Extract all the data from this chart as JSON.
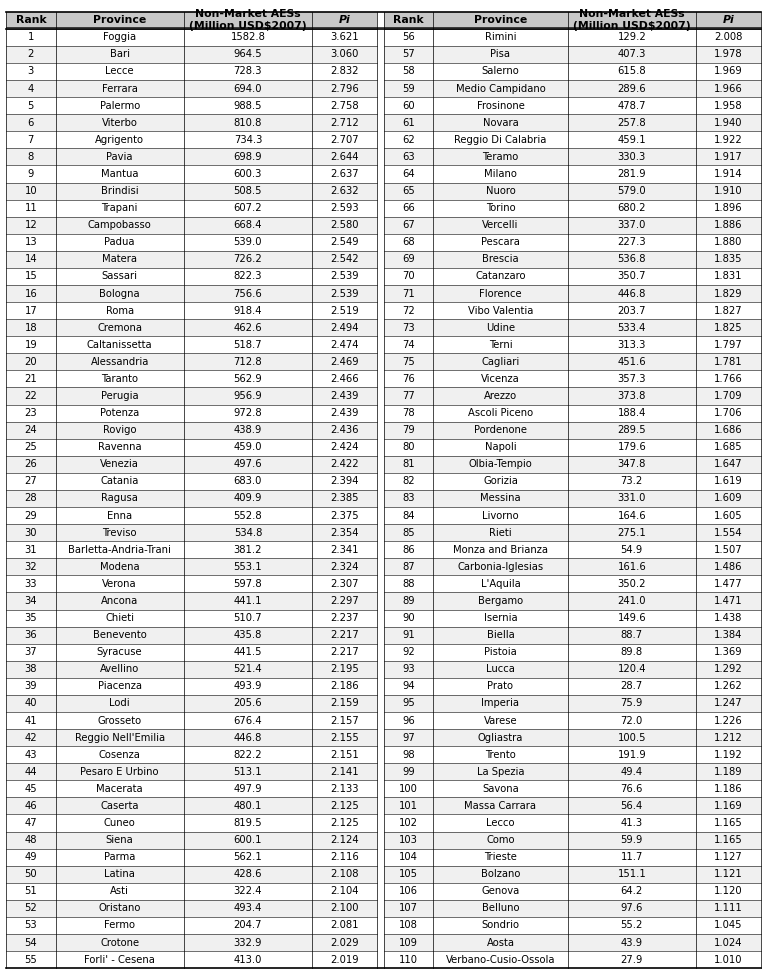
{
  "left_data": [
    [
      1,
      "Foggia",
      "1582.8",
      "3.621"
    ],
    [
      2,
      "Bari",
      "964.5",
      "3.060"
    ],
    [
      3,
      "Lecce",
      "728.3",
      "2.832"
    ],
    [
      4,
      "Ferrara",
      "694.0",
      "2.796"
    ],
    [
      5,
      "Palermo",
      "988.5",
      "2.758"
    ],
    [
      6,
      "Viterbo",
      "810.8",
      "2.712"
    ],
    [
      7,
      "Agrigento",
      "734.3",
      "2.707"
    ],
    [
      8,
      "Pavia",
      "698.9",
      "2.644"
    ],
    [
      9,
      "Mantua",
      "600.3",
      "2.637"
    ],
    [
      10,
      "Brindisi",
      "508.5",
      "2.632"
    ],
    [
      11,
      "Trapani",
      "607.2",
      "2.593"
    ],
    [
      12,
      "Campobasso",
      "668.4",
      "2.580"
    ],
    [
      13,
      "Padua",
      "539.0",
      "2.549"
    ],
    [
      14,
      "Matera",
      "726.2",
      "2.542"
    ],
    [
      15,
      "Sassari",
      "822.3",
      "2.539"
    ],
    [
      16,
      "Bologna",
      "756.6",
      "2.539"
    ],
    [
      17,
      "Roma",
      "918.4",
      "2.519"
    ],
    [
      18,
      "Cremona",
      "462.6",
      "2.494"
    ],
    [
      19,
      "Caltanissetta",
      "518.7",
      "2.474"
    ],
    [
      20,
      "Alessandria",
      "712.8",
      "2.469"
    ],
    [
      21,
      "Taranto",
      "562.9",
      "2.466"
    ],
    [
      22,
      "Perugia",
      "956.9",
      "2.439"
    ],
    [
      23,
      "Potenza",
      "972.8",
      "2.439"
    ],
    [
      24,
      "Rovigo",
      "438.9",
      "2.436"
    ],
    [
      25,
      "Ravenna",
      "459.0",
      "2.424"
    ],
    [
      26,
      "Venezia",
      "497.6",
      "2.422"
    ],
    [
      27,
      "Catania",
      "683.0",
      "2.394"
    ],
    [
      28,
      "Ragusa",
      "409.9",
      "2.385"
    ],
    [
      29,
      "Enna",
      "552.8",
      "2.375"
    ],
    [
      30,
      "Treviso",
      "534.8",
      "2.354"
    ],
    [
      31,
      "Barletta-Andria-Trani",
      "381.2",
      "2.341"
    ],
    [
      32,
      "Modena",
      "553.1",
      "2.324"
    ],
    [
      33,
      "Verona",
      "597.8",
      "2.307"
    ],
    [
      34,
      "Ancona",
      "441.1",
      "2.297"
    ],
    [
      35,
      "Chieti",
      "510.7",
      "2.237"
    ],
    [
      36,
      "Benevento",
      "435.8",
      "2.217"
    ],
    [
      37,
      "Syracuse",
      "441.5",
      "2.217"
    ],
    [
      38,
      "Avellino",
      "521.4",
      "2.195"
    ],
    [
      39,
      "Piacenza",
      "493.9",
      "2.186"
    ],
    [
      40,
      "Lodi",
      "205.6",
      "2.159"
    ],
    [
      41,
      "Grosseto",
      "676.4",
      "2.157"
    ],
    [
      42,
      "Reggio Nell'Emilia",
      "446.8",
      "2.155"
    ],
    [
      43,
      "Cosenza",
      "822.2",
      "2.151"
    ],
    [
      44,
      "Pesaro E Urbino",
      "513.1",
      "2.141"
    ],
    [
      45,
      "Macerata",
      "497.9",
      "2.133"
    ],
    [
      46,
      "Caserta",
      "480.1",
      "2.125"
    ],
    [
      47,
      "Cuneo",
      "819.5",
      "2.125"
    ],
    [
      48,
      "Siena",
      "600.1",
      "2.124"
    ],
    [
      49,
      "Parma",
      "562.1",
      "2.116"
    ],
    [
      50,
      "Latina",
      "428.6",
      "2.108"
    ],
    [
      51,
      "Asti",
      "322.4",
      "2.104"
    ],
    [
      52,
      "Oristano",
      "493.4",
      "2.100"
    ],
    [
      53,
      "Fermo",
      "204.7",
      "2.081"
    ],
    [
      54,
      "Crotone",
      "332.9",
      "2.029"
    ],
    [
      55,
      "Forli' - Cesena",
      "413.0",
      "2.019"
    ]
  ],
  "right_data": [
    [
      56,
      "Rimini",
      "129.2",
      "2.008"
    ],
    [
      57,
      "Pisa",
      "407.3",
      "1.978"
    ],
    [
      58,
      "Salerno",
      "615.8",
      "1.969"
    ],
    [
      59,
      "Medio Campidano",
      "289.6",
      "1.966"
    ],
    [
      60,
      "Frosinone",
      "478.7",
      "1.958"
    ],
    [
      61,
      "Novara",
      "257.8",
      "1.940"
    ],
    [
      62,
      "Reggio Di Calabria",
      "459.1",
      "1.922"
    ],
    [
      63,
      "Teramo",
      "330.3",
      "1.917"
    ],
    [
      64,
      "Milano",
      "281.9",
      "1.914"
    ],
    [
      65,
      "Nuoro",
      "579.0",
      "1.910"
    ],
    [
      66,
      "Torino",
      "680.2",
      "1.896"
    ],
    [
      67,
      "Vercelli",
      "337.0",
      "1.886"
    ],
    [
      68,
      "Pescara",
      "227.3",
      "1.880"
    ],
    [
      69,
      "Brescia",
      "536.8",
      "1.835"
    ],
    [
      70,
      "Catanzaro",
      "350.7",
      "1.831"
    ],
    [
      71,
      "Florence",
      "446.8",
      "1.829"
    ],
    [
      72,
      "Vibo Valentia",
      "203.7",
      "1.827"
    ],
    [
      73,
      "Udine",
      "533.4",
      "1.825"
    ],
    [
      74,
      "Terni",
      "313.3",
      "1.797"
    ],
    [
      75,
      "Cagliari",
      "451.6",
      "1.781"
    ],
    [
      76,
      "Vicenza",
      "357.3",
      "1.766"
    ],
    [
      77,
      "Arezzo",
      "373.8",
      "1.709"
    ],
    [
      78,
      "Ascoli Piceno",
      "188.4",
      "1.706"
    ],
    [
      79,
      "Pordenone",
      "289.5",
      "1.686"
    ],
    [
      80,
      "Napoli",
      "179.6",
      "1.685"
    ],
    [
      81,
      "Olbia-Tempio",
      "347.8",
      "1.647"
    ],
    [
      82,
      "Gorizia",
      "73.2",
      "1.619"
    ],
    [
      83,
      "Messina",
      "331.0",
      "1.609"
    ],
    [
      84,
      "Livorno",
      "164.6",
      "1.605"
    ],
    [
      85,
      "Rieti",
      "275.1",
      "1.554"
    ],
    [
      86,
      "Monza and Brianza",
      "54.9",
      "1.507"
    ],
    [
      87,
      "Carbonia-Iglesias",
      "161.6",
      "1.486"
    ],
    [
      88,
      "L'Aquila",
      "350.2",
      "1.477"
    ],
    [
      89,
      "Bergamo",
      "241.0",
      "1.471"
    ],
    [
      90,
      "Isernia",
      "149.6",
      "1.438"
    ],
    [
      91,
      "Biella",
      "88.7",
      "1.384"
    ],
    [
      92,
      "Pistoia",
      "89.8",
      "1.369"
    ],
    [
      93,
      "Lucca",
      "120.4",
      "1.292"
    ],
    [
      94,
      "Prato",
      "28.7",
      "1.262"
    ],
    [
      95,
      "Imperia",
      "75.9",
      "1.247"
    ],
    [
      96,
      "Varese",
      "72.0",
      "1.226"
    ],
    [
      97,
      "Ogliastra",
      "100.5",
      "1.212"
    ],
    [
      98,
      "Trento",
      "191.9",
      "1.192"
    ],
    [
      99,
      "La Spezia",
      "49.4",
      "1.189"
    ],
    [
      100,
      "Savona",
      "76.6",
      "1.186"
    ],
    [
      101,
      "Massa Carrara",
      "56.4",
      "1.169"
    ],
    [
      102,
      "Lecco",
      "41.3",
      "1.165"
    ],
    [
      103,
      "Como",
      "59.9",
      "1.165"
    ],
    [
      104,
      "Trieste",
      "11.7",
      "1.127"
    ],
    [
      105,
      "Bolzano",
      "151.1",
      "1.121"
    ],
    [
      106,
      "Genova",
      "64.2",
      "1.120"
    ],
    [
      107,
      "Belluno",
      "97.6",
      "1.111"
    ],
    [
      108,
      "Sondrio",
      "55.2",
      "1.045"
    ],
    [
      109,
      "Aosta",
      "43.9",
      "1.024"
    ],
    [
      110,
      "Verbano-Cusio-Ossola",
      "27.9",
      "1.010"
    ]
  ],
  "header_bg": "#c8c8c8",
  "row_bg_even": "#ffffff",
  "row_bg_odd": "#f0f0f0",
  "header_font_size": 7.8,
  "cell_font_size": 7.2,
  "fig_width": 7.67,
  "fig_height": 9.76
}
